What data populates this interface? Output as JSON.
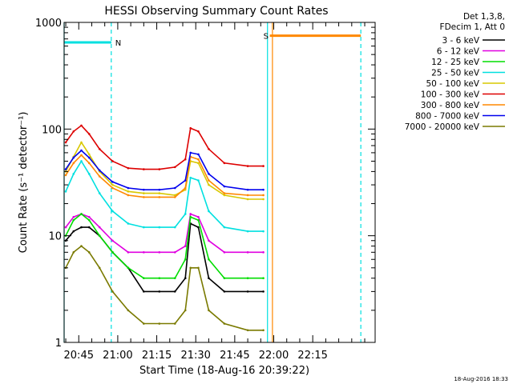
{
  "chart_data": {
    "type": "line",
    "title": "HESSI Observing Summary Count Rates",
    "xlabel": "Start Time (18-Aug-16 20:39:22)",
    "ylabel": "Count Rate (s⁻¹ detector⁻¹)",
    "yscale": "log",
    "ylim": [
      1,
      1000
    ],
    "xlim_min": [
      39.37,
      159.0
    ],
    "x_ticks": [
      "20:45",
      "21:00",
      "21:15",
      "21:30",
      "21:45",
      "22:00",
      "22:15"
    ],
    "x_tick_minutes": [
      45,
      60,
      75,
      90,
      105,
      120,
      135
    ],
    "y_ticks": [
      "1",
      "10",
      "100",
      "1000"
    ],
    "y_tick_values": [
      1,
      10,
      100,
      1000
    ],
    "legend_position": "outside-right",
    "legend_header": [
      "Det 1,3,8,",
      "FDecim 1, Att 0"
    ],
    "series": [
      {
        "name": "3 - 6 keV",
        "color": "#000000",
        "values": [
          9,
          11,
          12,
          12,
          10,
          7,
          5,
          3,
          3,
          3,
          4,
          13,
          12,
          4,
          3,
          3,
          3
        ]
      },
      {
        "name": "6 - 12 keV",
        "color": "#e000e0",
        "values": [
          12,
          15,
          16,
          15,
          12,
          9,
          7,
          7,
          7,
          7,
          8,
          16,
          15,
          9,
          7,
          7,
          7
        ]
      },
      {
        "name": "12 - 25 keV",
        "color": "#00dd00",
        "values": [
          10,
          14,
          16,
          14,
          10,
          7,
          5,
          4,
          4,
          4,
          6,
          15,
          14,
          6,
          4,
          4,
          4
        ]
      },
      {
        "name": "25 - 50 keV",
        "color": "#00e0e0",
        "values": [
          26,
          38,
          50,
          38,
          25,
          17,
          13,
          12,
          12,
          12,
          16,
          35,
          33,
          17,
          12,
          11,
          11
        ]
      },
      {
        "name": "50 - 100 keV",
        "color": "#d8c800",
        "values": [
          40,
          55,
          75,
          58,
          40,
          30,
          26,
          25,
          25,
          24,
          27,
          50,
          48,
          30,
          24,
          22,
          22
        ]
      },
      {
        "name": "100 - 300 keV",
        "color": "#dd0000",
        "values": [
          75,
          95,
          108,
          90,
          65,
          50,
          43,
          42,
          42,
          44,
          52,
          102,
          95,
          65,
          48,
          45,
          45
        ]
      },
      {
        "name": "300 - 800 keV",
        "color": "#ff8800",
        "values": [
          37,
          48,
          57,
          48,
          36,
          28,
          24,
          23,
          23,
          23,
          28,
          55,
          52,
          33,
          25,
          24,
          24
        ]
      },
      {
        "name": "800 - 7000 keV",
        "color": "#0000ee",
        "values": [
          42,
          54,
          63,
          54,
          41,
          32,
          28,
          27,
          27,
          28,
          33,
          60,
          58,
          38,
          29,
          27,
          27
        ]
      },
      {
        "name": "7000 - 20000 keV",
        "color": "#7a7a00",
        "values": [
          5,
          7,
          8,
          7,
          5,
          3,
          2,
          1.5,
          1.5,
          1.5,
          2,
          5,
          5,
          2,
          1.5,
          1.3,
          1.3
        ]
      }
    ],
    "x_minutes": [
      40,
      43,
      46,
      49,
      53,
      58,
      64,
      70,
      76,
      82,
      86,
      88,
      91,
      95,
      101,
      110,
      116
    ],
    "flag_lines": [
      {
        "label": "",
        "start": 39.37,
        "end": 57.5,
        "y": 650,
        "color": "#00e0e0"
      },
      {
        "label": "N",
        "start": 39.37,
        "end": 57.5,
        "y": 650,
        "color": "#00e0e0"
      },
      {
        "label": "S",
        "start": 118.5,
        "end": 153.5,
        "y": 750,
        "color": "#ff8800"
      }
    ],
    "vertical_markers": [
      {
        "minute": 39.37,
        "color": "#00e0e0",
        "style": "solid"
      },
      {
        "minute": 57.5,
        "color": "#00e0e0",
        "style": "dashed"
      },
      {
        "minute": 117.6,
        "color": "#00e0e0",
        "style": "solid"
      },
      {
        "minute": 119.5,
        "color": "#ff8800",
        "style": "solid"
      },
      {
        "minute": 153.5,
        "color": "#00e0e0",
        "style": "dashed"
      }
    ]
  },
  "footer_timestamp": "18-Aug-2016 18:33"
}
